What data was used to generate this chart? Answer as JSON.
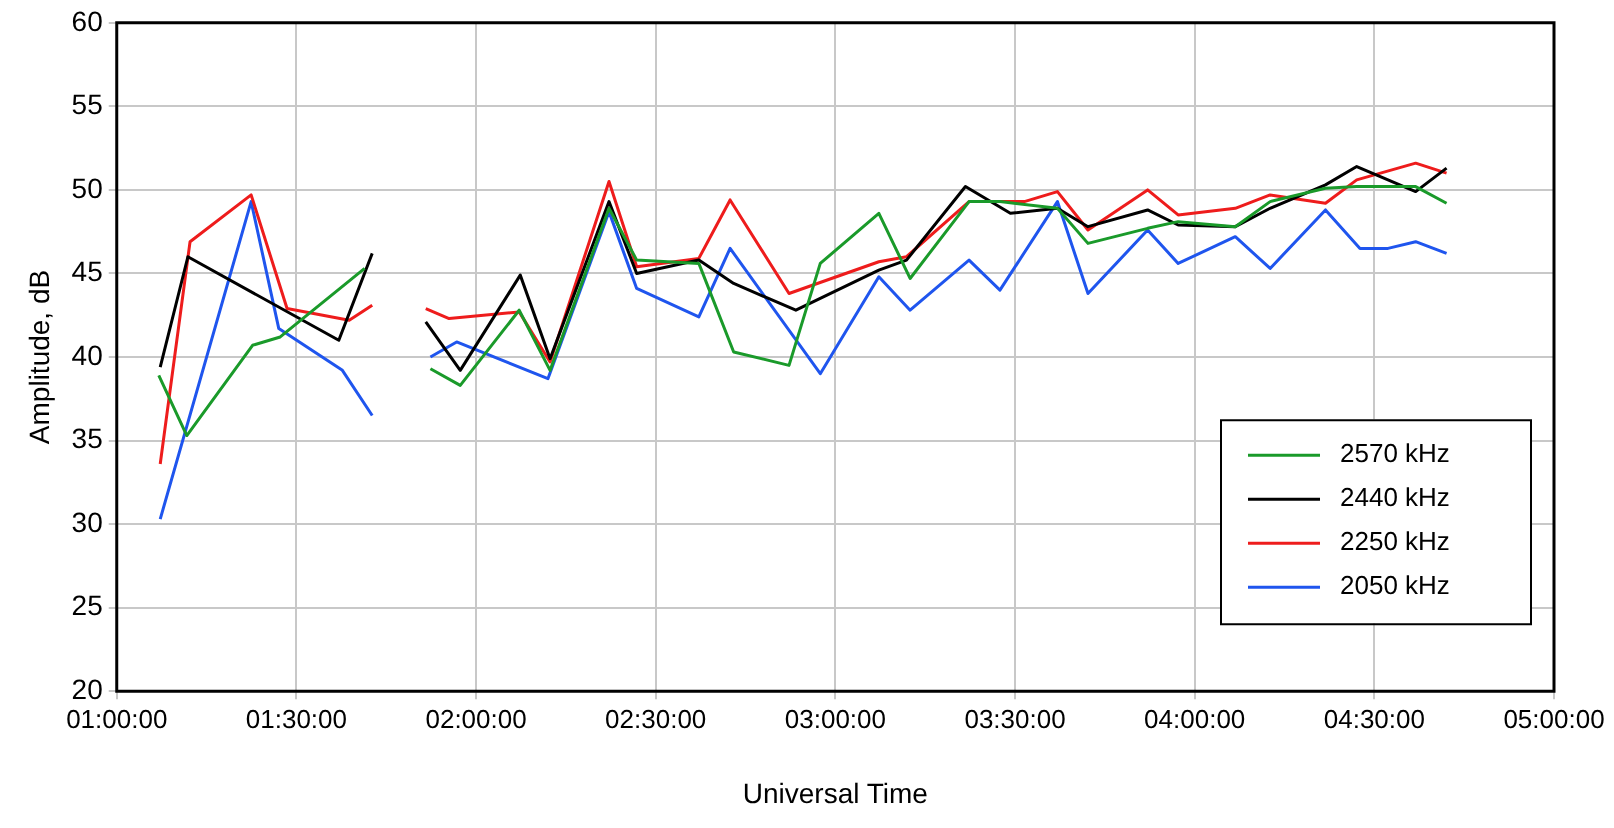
{
  "chart_data": {
    "type": "line",
    "xlabel": "Universal Time",
    "ylabel": "Amplitude, dB",
    "xlim": [
      1,
      5
    ],
    "xticks": [
      {
        "value": 1,
        "label": "01:00:00"
      },
      {
        "value": 1.5,
        "label": "01:30:00"
      },
      {
        "value": 2,
        "label": "02:00:00"
      },
      {
        "value": 2.5,
        "label": "02:30:00"
      },
      {
        "value": 3,
        "label": "03:00:00"
      },
      {
        "value": 3.5,
        "label": "03:30:00"
      },
      {
        "value": 4,
        "label": "04:00:00"
      },
      {
        "value": 4.5,
        "label": "04:30:00"
      },
      {
        "value": 5,
        "label": "05:00:00"
      }
    ],
    "ylim": [
      20,
      60
    ],
    "yticks": [
      20,
      25,
      30,
      35,
      40,
      45,
      50,
      55,
      60
    ],
    "grid": true,
    "legend": "bottom right",
    "marker": "none",
    "line_style": "solid",
    "series": [
      {
        "name": "2570 kHz",
        "color": "#1a9a2a",
        "x": [
          1.117,
          1.195,
          1.378,
          1.455,
          1.69,
          1.78,
          1.873,
          1.956,
          2.12,
          2.206,
          2.37,
          2.447,
          2.62,
          2.717,
          2.871,
          2.958,
          3.121,
          3.208,
          3.372,
          3.458,
          3.618,
          3.703,
          3.869,
          3.954,
          4.113,
          4.21,
          4.364,
          4.451,
          4.615,
          4.701
        ],
        "values": [
          38.9,
          35.3,
          40.7,
          41.2,
          45.3,
          null,
          39.3,
          38.3,
          42.8,
          39.2,
          48.9,
          45.8,
          45.6,
          40.3,
          39.5,
          45.6,
          48.6,
          44.7,
          49.3,
          49.3,
          48.9,
          46.8,
          47.7,
          48.1,
          47.8,
          49.3,
          50.1,
          50.2,
          50.2,
          49.2
        ]
      },
      {
        "name": "2440 kHz",
        "color": "#000000",
        "x": [
          1.121,
          1.198,
          1.618,
          1.711,
          1.78,
          1.86,
          1.956,
          2.123,
          2.206,
          2.37,
          2.447,
          2.62,
          2.717,
          2.89,
          3.121,
          3.198,
          3.362,
          3.487,
          3.618,
          3.703,
          3.869,
          3.954,
          4.113,
          4.21,
          4.364,
          4.451,
          4.615,
          4.701
        ],
        "values": [
          39.4,
          46.0,
          41.0,
          46.2,
          null,
          42.1,
          39.2,
          44.9,
          39.9,
          49.3,
          45.0,
          45.8,
          44.4,
          42.8,
          45.2,
          45.8,
          50.2,
          48.6,
          48.9,
          47.8,
          48.8,
          47.9,
          47.8,
          48.9,
          50.3,
          51.4,
          49.9,
          51.3
        ]
      },
      {
        "name": "2250 kHz",
        "color": "#ee1c1c",
        "x": [
          1.121,
          1.204,
          1.374,
          1.474,
          1.647,
          1.711,
          1.78,
          1.86,
          1.925,
          2.12,
          2.206,
          2.37,
          2.447,
          2.62,
          2.707,
          2.871,
          3.121,
          3.198,
          3.372,
          3.526,
          3.618,
          3.703,
          3.869,
          3.954,
          4.113,
          4.21,
          4.364,
          4.451,
          4.615,
          4.701
        ],
        "values": [
          33.6,
          46.9,
          49.7,
          42.9,
          42.2,
          43.1,
          null,
          42.9,
          42.3,
          42.7,
          39.7,
          50.5,
          45.4,
          45.9,
          49.4,
          43.8,
          45.7,
          46.0,
          49.3,
          49.3,
          49.9,
          47.6,
          50.0,
          48.5,
          48.9,
          49.7,
          49.2,
          50.6,
          51.6,
          51.0
        ]
      },
      {
        "name": "2050 kHz",
        "color": "#1f55ee",
        "x": [
          1.121,
          1.374,
          1.451,
          1.628,
          1.711,
          1.78,
          1.873,
          1.946,
          2.2,
          2.37,
          2.447,
          2.62,
          2.707,
          2.958,
          3.121,
          3.208,
          3.372,
          3.458,
          3.618,
          3.703,
          3.869,
          3.954,
          4.113,
          4.21,
          4.364,
          4.46,
          4.538,
          4.615,
          4.701
        ],
        "values": [
          30.3,
          49.3,
          41.7,
          39.2,
          36.5,
          null,
          40.0,
          40.9,
          38.7,
          48.7,
          44.1,
          42.4,
          46.5,
          39.0,
          44.8,
          42.8,
          45.8,
          44.0,
          49.3,
          43.8,
          47.6,
          45.6,
          47.2,
          45.3,
          48.8,
          46.5,
          46.5,
          46.9,
          46.2
        ]
      }
    ]
  }
}
